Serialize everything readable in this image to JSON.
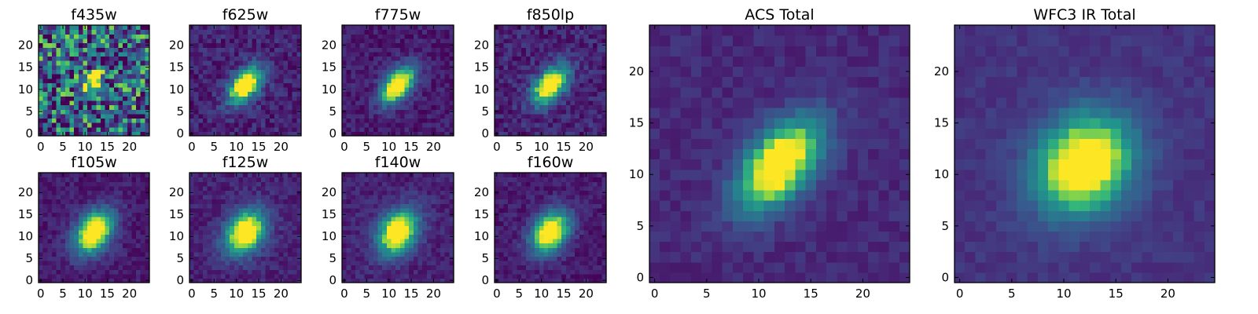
{
  "chart_data": [
    {
      "type": "heatmap",
      "title": "f435w",
      "xticks": [
        0,
        5,
        10,
        15,
        20
      ],
      "yticks": [
        0,
        5,
        10,
        15,
        20
      ],
      "xlim": [
        -0.5,
        24.5
      ],
      "ylim": [
        -0.5,
        24.5
      ],
      "grid": false,
      "grid_size": [
        25,
        25
      ],
      "peak": [
        12,
        12
      ],
      "sigma_major": 2.2,
      "sigma_minor": 1.2,
      "angle_deg": 55,
      "noise": 0.4,
      "background": 0.3,
      "seed": 11
    },
    {
      "type": "heatmap",
      "title": "f625w",
      "xticks": [
        0,
        5,
        10,
        15,
        20
      ],
      "yticks": [
        0,
        5,
        10,
        15,
        20
      ],
      "xlim": [
        -0.5,
        24.5
      ],
      "ylim": [
        -0.5,
        24.5
      ],
      "grid": false,
      "grid_size": [
        25,
        25
      ],
      "peak": [
        12,
        11
      ],
      "sigma_major": 3.4,
      "sigma_minor": 2.0,
      "angle_deg": 50,
      "noise": 0.1,
      "background": 0.1,
      "seed": 23
    },
    {
      "type": "heatmap",
      "title": "f775w",
      "xticks": [
        0,
        5,
        10,
        15,
        20
      ],
      "yticks": [
        0,
        5,
        10,
        15,
        20
      ],
      "xlim": [
        -0.5,
        24.5
      ],
      "ylim": [
        -0.5,
        24.5
      ],
      "grid": false,
      "grid_size": [
        25,
        25
      ],
      "peak": [
        12,
        11
      ],
      "sigma_major": 3.4,
      "sigma_minor": 2.0,
      "angle_deg": 50,
      "noise": 0.08,
      "background": 0.08,
      "seed": 37
    },
    {
      "type": "heatmap",
      "title": "f850lp",
      "xticks": [
        0,
        5,
        10,
        15,
        20
      ],
      "yticks": [
        0,
        5,
        10,
        15,
        20
      ],
      "xlim": [
        -0.5,
        24.5
      ],
      "ylim": [
        -0.5,
        24.5
      ],
      "grid": false,
      "grid_size": [
        25,
        25
      ],
      "peak": [
        12,
        11
      ],
      "sigma_major": 3.5,
      "sigma_minor": 2.1,
      "angle_deg": 50,
      "noise": 0.1,
      "background": 0.1,
      "seed": 41
    },
    {
      "type": "heatmap",
      "title": "f105w",
      "xticks": [
        0,
        5,
        10,
        15,
        20
      ],
      "yticks": [
        0,
        5,
        10,
        15,
        20
      ],
      "xlim": [
        -0.5,
        24.5
      ],
      "ylim": [
        -0.5,
        24.5
      ],
      "grid": false,
      "grid_size": [
        25,
        25
      ],
      "peak": [
        12,
        11
      ],
      "sigma_major": 3.8,
      "sigma_minor": 2.6,
      "angle_deg": 55,
      "noise": 0.07,
      "background": 0.08,
      "seed": 53
    },
    {
      "type": "heatmap",
      "title": "f125w",
      "xticks": [
        0,
        5,
        10,
        15,
        20
      ],
      "yticks": [
        0,
        5,
        10,
        15,
        20
      ],
      "xlim": [
        -0.5,
        24.5
      ],
      "ylim": [
        -0.5,
        24.5
      ],
      "grid": false,
      "grid_size": [
        25,
        25
      ],
      "peak": [
        12,
        11
      ],
      "sigma_major": 3.8,
      "sigma_minor": 2.8,
      "angle_deg": 55,
      "noise": 0.07,
      "background": 0.1,
      "seed": 67
    },
    {
      "type": "heatmap",
      "title": "f140w",
      "xticks": [
        0,
        5,
        10,
        15,
        20
      ],
      "yticks": [
        0,
        5,
        10,
        15,
        20
      ],
      "xlim": [
        -0.5,
        24.5
      ],
      "ylim": [
        -0.5,
        24.5
      ],
      "grid": false,
      "grid_size": [
        25,
        25
      ],
      "peak": [
        12,
        11
      ],
      "sigma_major": 3.8,
      "sigma_minor": 2.8,
      "angle_deg": 55,
      "noise": 0.07,
      "background": 0.1,
      "seed": 71
    },
    {
      "type": "heatmap",
      "title": "f160w",
      "xticks": [
        0,
        5,
        10,
        15,
        20
      ],
      "yticks": [
        0,
        5,
        10,
        15,
        20
      ],
      "xlim": [
        -0.5,
        24.5
      ],
      "ylim": [
        -0.5,
        24.5
      ],
      "grid": false,
      "grid_size": [
        25,
        25
      ],
      "peak": [
        12,
        11
      ],
      "sigma_major": 3.6,
      "sigma_minor": 2.6,
      "angle_deg": 55,
      "noise": 0.07,
      "background": 0.08,
      "seed": 83
    },
    {
      "type": "heatmap",
      "title": "ACS Total",
      "xticks": [
        0,
        5,
        10,
        15,
        20
      ],
      "yticks": [
        0,
        5,
        10,
        15,
        20
      ],
      "xlim": [
        -0.5,
        24.5
      ],
      "ylim": [
        -0.5,
        24.5
      ],
      "grid": false,
      "grid_size": [
        25,
        25
      ],
      "peak": [
        12,
        11
      ],
      "sigma_major": 3.6,
      "sigma_minor": 2.0,
      "angle_deg": 50,
      "noise": 0.05,
      "background": 0.12,
      "seed": 97
    },
    {
      "type": "heatmap",
      "title": "WFC3 IR Total",
      "xticks": [
        0,
        5,
        10,
        15,
        20
      ],
      "yticks": [
        0,
        5,
        10,
        15,
        20
      ],
      "xlim": [
        -0.5,
        24.5
      ],
      "ylim": [
        -0.5,
        24.5
      ],
      "grid": false,
      "grid_size": [
        25,
        25
      ],
      "peak": [
        12,
        11
      ],
      "sigma_major": 3.6,
      "sigma_minor": 3.0,
      "angle_deg": 50,
      "noise": 0.04,
      "background": 0.15,
      "seed": 101
    }
  ],
  "colormap": "viridis"
}
